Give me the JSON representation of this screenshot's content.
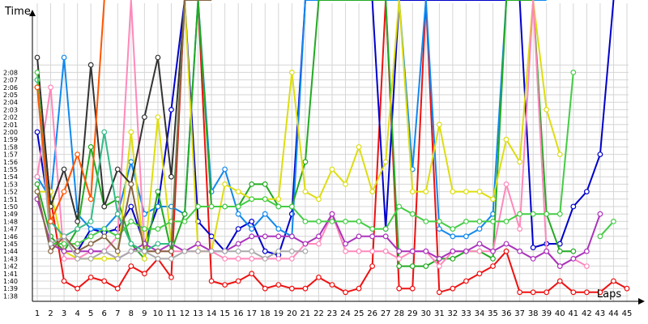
{
  "chart_data": {
    "type": "line",
    "title": "",
    "ylabel": "Time",
    "xlabel": "Laps",
    "x": [
      1,
      2,
      3,
      4,
      5,
      6,
      7,
      8,
      9,
      10,
      11,
      12,
      13,
      14,
      15,
      16,
      17,
      18,
      19,
      20,
      21,
      22,
      23,
      24,
      25,
      26,
      27,
      28,
      29,
      30,
      31,
      32,
      33,
      34,
      35,
      36,
      37,
      38,
      39,
      40,
      41,
      42,
      43,
      44,
      45
    ],
    "y_ticks": [
      "1:38",
      "1:39",
      "1:40",
      "1:41",
      "1:42",
      "1:43",
      "1:44",
      "1:45",
      "1:46",
      "1:47",
      "1:48",
      "1:49",
      "1:50",
      "1:51",
      "1:52",
      "1:53",
      "1:54",
      "1:55",
      "1:56",
      "1:57",
      "1:58",
      "1:59",
      "2:00",
      "2:01",
      "2:02",
      "2:03",
      "2:04",
      "2:05",
      "2:06",
      "2:07",
      "2:08"
    ],
    "ylim_seconds": [
      97.5,
      130
    ],
    "grid": true,
    "series": [
      {
        "color": "#ee1111",
        "values": [
          126,
          111,
          100,
          99,
          100.5,
          100,
          99,
          102,
          101,
          103,
          100.5,
          150,
          150,
          100,
          99.5,
          100,
          101,
          99,
          99.5,
          99,
          99,
          100.5,
          99.5,
          98.5,
          99,
          102,
          150,
          99,
          99,
          150,
          98.5,
          99,
          100,
          101,
          102,
          104,
          98.5,
          98.5,
          98.5,
          100,
          98.5,
          98.5,
          98.5,
          100,
          99
        ]
      },
      {
        "color": "#0000cc",
        "values": [
          120,
          108,
          106,
          104,
          107,
          106.5,
          107,
          110,
          105,
          110,
          123,
          150,
          108,
          106,
          104,
          107,
          108,
          104,
          103.5,
          109,
          150,
          150,
          150,
          150,
          150,
          150,
          107,
          150,
          150,
          150,
          150,
          150,
          150,
          150,
          150,
          150,
          150,
          104.5,
          105,
          105,
          110,
          112,
          117,
          150,
          null
        ]
      },
      {
        "color": "#1188ee",
        "values": [
          114,
          111,
          130,
          109,
          107,
          107,
          109,
          116,
          109,
          110,
          110,
          109,
          150,
          112,
          115,
          109,
          107,
          109,
          107,
          106,
          150,
          150,
          150,
          150,
          150,
          150,
          150,
          150,
          115,
          150,
          107,
          106,
          106,
          107,
          109,
          150,
          150,
          150,
          150,
          null,
          null,
          null,
          null,
          null,
          null
        ]
      },
      {
        "color": "#22aa22",
        "values": [
          113,
          106,
          104,
          107,
          118,
          110,
          111,
          105,
          103,
          112,
          104,
          109,
          150,
          110,
          110,
          110,
          113,
          113,
          110,
          110,
          116,
          150,
          150,
          150,
          150,
          150,
          150,
          102,
          102,
          102,
          103,
          103,
          104,
          104,
          103,
          150,
          150,
          150,
          109,
          104,
          104,
          null,
          null,
          null,
          null
        ]
      },
      {
        "color": "#dddd11",
        "values": [
          112,
          112,
          104,
          103,
          103,
          103,
          103,
          120,
          103,
          122,
          105,
          150,
          104,
          104,
          113,
          112,
          111,
          111,
          111,
          128,
          112,
          111,
          115,
          113,
          118,
          112,
          116,
          150,
          112,
          112,
          121,
          112,
          112,
          112,
          111,
          119,
          116,
          150,
          123,
          117,
          null,
          null,
          null,
          null,
          null
        ]
      },
      {
        "color": "#ff88bb",
        "values": [
          114,
          126,
          103,
          103,
          104,
          104,
          106,
          150,
          104,
          104,
          104,
          104,
          104,
          104,
          103,
          103,
          103,
          103,
          103,
          103,
          105,
          105,
          109,
          104,
          104,
          104,
          104,
          103,
          104,
          104,
          102,
          104,
          104,
          104,
          104,
          113,
          107,
          150,
          104,
          102,
          103,
          102,
          null,
          null,
          null
        ]
      },
      {
        "color": "#aa33bb",
        "values": [
          111,
          105,
          104,
          104,
          104,
          104,
          103,
          104,
          105,
          104,
          105,
          104,
          105,
          104,
          104,
          105,
          106,
          106,
          106,
          106,
          105,
          106,
          109,
          105,
          106,
          106,
          106,
          104,
          104,
          104,
          103,
          104,
          104,
          105,
          104,
          105,
          104,
          103,
          104,
          102,
          103,
          104,
          109,
          null,
          null
        ]
      },
      {
        "color": "#333333",
        "values": [
          130,
          110,
          115,
          108,
          129,
          110,
          115,
          113,
          122,
          130,
          114,
          150,
          150,
          150,
          null,
          null,
          null,
          null,
          null,
          null,
          null,
          null,
          null,
          null,
          null,
          null,
          null,
          null,
          null,
          null,
          null,
          null,
          null,
          null,
          null,
          null,
          null,
          null,
          null,
          null,
          null,
          null,
          null,
          null,
          null
        ]
      },
      {
        "color": "#33bb88",
        "values": [
          127,
          108,
          106,
          107,
          108,
          120,
          109,
          105,
          104,
          105,
          105,
          150,
          150,
          150,
          null,
          null,
          null,
          null,
          null,
          null,
          null,
          null,
          null,
          null,
          null,
          null,
          null,
          null,
          null,
          null,
          null,
          null,
          null,
          null,
          null,
          null,
          null,
          null,
          null,
          null,
          null,
          null,
          null,
          null,
          null
        ]
      },
      {
        "color": "#44cc44",
        "values": [
          128,
          105,
          105,
          105,
          106,
          107,
          106,
          108,
          107,
          107,
          108,
          108,
          110,
          110,
          110,
          110,
          111,
          111,
          110,
          110,
          108,
          108,
          108,
          108,
          108,
          107,
          107,
          110,
          109,
          108,
          108,
          107,
          108,
          108,
          108,
          108,
          109,
          109,
          109,
          109,
          128,
          null,
          106,
          108,
          null
        ]
      },
      {
        "color": "#886644",
        "values": [
          112,
          104,
          106,
          104,
          105,
          106,
          104,
          113,
          104,
          104,
          104,
          150,
          150,
          150,
          null,
          null,
          null,
          null,
          null,
          null,
          null,
          null,
          null,
          null,
          null,
          null,
          null,
          null,
          null,
          null,
          null,
          null,
          null,
          null,
          null,
          null,
          null,
          null,
          null,
          null,
          null,
          null,
          null,
          null,
          null
        ]
      },
      {
        "color": "#aaaaaa",
        "values": [
          126,
          105,
          106,
          103,
          103,
          104,
          103,
          104,
          104,
          103,
          103,
          104,
          104,
          104,
          104,
          104,
          104,
          103,
          104,
          104,
          104,
          null,
          null,
          null,
          null,
          null,
          null,
          null,
          null,
          null,
          null,
          null,
          null,
          null,
          null,
          null,
          null,
          null,
          null,
          null,
          null,
          null,
          null,
          null,
          null
        ]
      },
      {
        "color": "#ff5500",
        "values": [
          126,
          108,
          112,
          117,
          111,
          150,
          null,
          null,
          null,
          null,
          null,
          null,
          null,
          null,
          null,
          null,
          null,
          null,
          null,
          null,
          null,
          null,
          null,
          null,
          null,
          null,
          null,
          null,
          null,
          null,
          null,
          null,
          null,
          null,
          null,
          null,
          null,
          null,
          null,
          null,
          null,
          null,
          null,
          null,
          null
        ]
      }
    ]
  }
}
